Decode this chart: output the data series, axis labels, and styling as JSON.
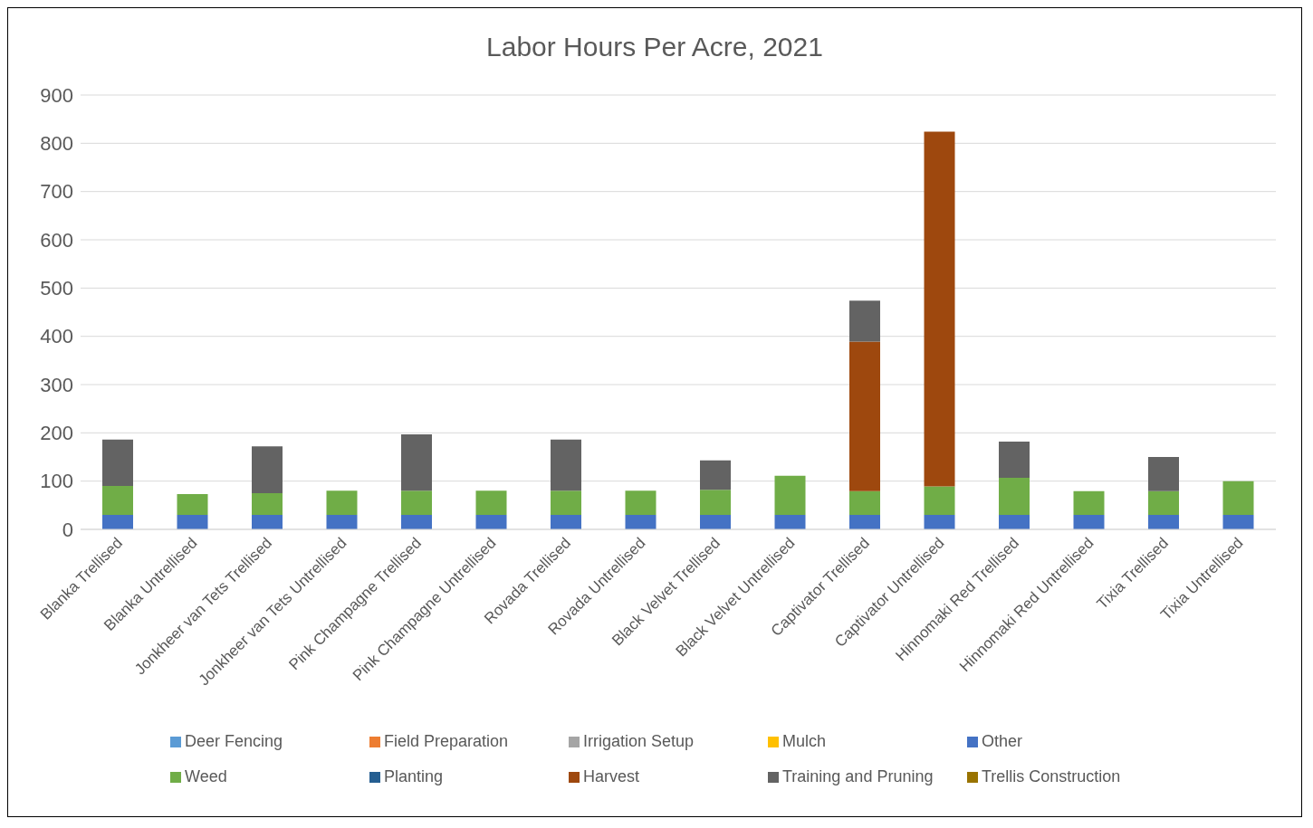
{
  "chart_data": {
    "type": "bar",
    "title": "Labor Hours Per Acre, 2021",
    "stacked": true,
    "grid": "y",
    "legend": "bottom",
    "ylim": [
      0,
      900
    ],
    "yticks": [
      0,
      100,
      200,
      300,
      400,
      500,
      600,
      700,
      800,
      900
    ],
    "categories": [
      "Blanka Trellised",
      "Blanka Untrellised",
      "Jonkheer van Tets Trellised",
      "Jonkheer van Tets Untrellised",
      "Pink Champagne Trellised",
      "Pink Champagne Untrellised",
      "Rovada Trellised",
      "Rovada Untrellised",
      "Black Velvet Trellised",
      "Black Velvet Untrellised",
      "Captivator Trellised",
      "Captivator Untrellised",
      "Hinnomaki Red Trellised",
      "Hinnomaki Red Untrellised",
      "Tixia Trellised",
      "Tixia Untrellised"
    ],
    "series": [
      {
        "name": "Deer Fencing",
        "color": "#5b9bd5",
        "values": [
          0,
          0,
          0,
          0,
          0,
          0,
          0,
          0,
          0,
          0,
          0,
          0,
          0,
          0,
          0,
          0
        ]
      },
      {
        "name": "Field Preparation",
        "color": "#ed7d31",
        "values": [
          0,
          0,
          0,
          0,
          0,
          0,
          0,
          0,
          0,
          0,
          0,
          0,
          0,
          0,
          0,
          0
        ]
      },
      {
        "name": "Irrigation Setup",
        "color": "#a5a5a5",
        "values": [
          0,
          0,
          0,
          0,
          0,
          0,
          0,
          0,
          0,
          0,
          0,
          0,
          0,
          0,
          0,
          0
        ]
      },
      {
        "name": "Mulch",
        "color": "#ffc000",
        "values": [
          0,
          0,
          0,
          0,
          0,
          0,
          0,
          0,
          0,
          0,
          0,
          0,
          0,
          0,
          0,
          0
        ]
      },
      {
        "name": "Other",
        "color": "#4472c4",
        "values": [
          30,
          30,
          30,
          30,
          30,
          30,
          30,
          30,
          30,
          30,
          30,
          30,
          30,
          30,
          30,
          30
        ]
      },
      {
        "name": "Weed",
        "color": "#70ad47",
        "values": [
          60,
          43,
          45,
          50,
          50,
          50,
          50,
          50,
          52,
          81,
          49,
          59,
          77,
          49,
          49,
          70
        ]
      },
      {
        "name": "Planting",
        "color": "#255e91",
        "values": [
          0,
          0,
          0,
          0,
          0,
          0,
          0,
          0,
          0,
          0,
          0,
          0,
          0,
          0,
          0,
          0
        ]
      },
      {
        "name": "Harvest",
        "color": "#9e480e",
        "values": [
          0,
          0,
          0,
          0,
          0,
          0,
          0,
          0,
          0,
          0,
          310,
          735,
          0,
          0,
          0,
          0
        ]
      },
      {
        "name": "Training and Pruning",
        "color": "#636363",
        "values": [
          96,
          0,
          97,
          0,
          117,
          0,
          106,
          0,
          61,
          0,
          85,
          0,
          75,
          0,
          71,
          0
        ]
      },
      {
        "name": "Trellis Construction",
        "color": "#997300",
        "values": [
          0,
          0,
          0,
          0,
          0,
          0,
          0,
          0,
          0,
          0,
          0,
          0,
          0,
          0,
          0,
          0
        ]
      }
    ]
  }
}
